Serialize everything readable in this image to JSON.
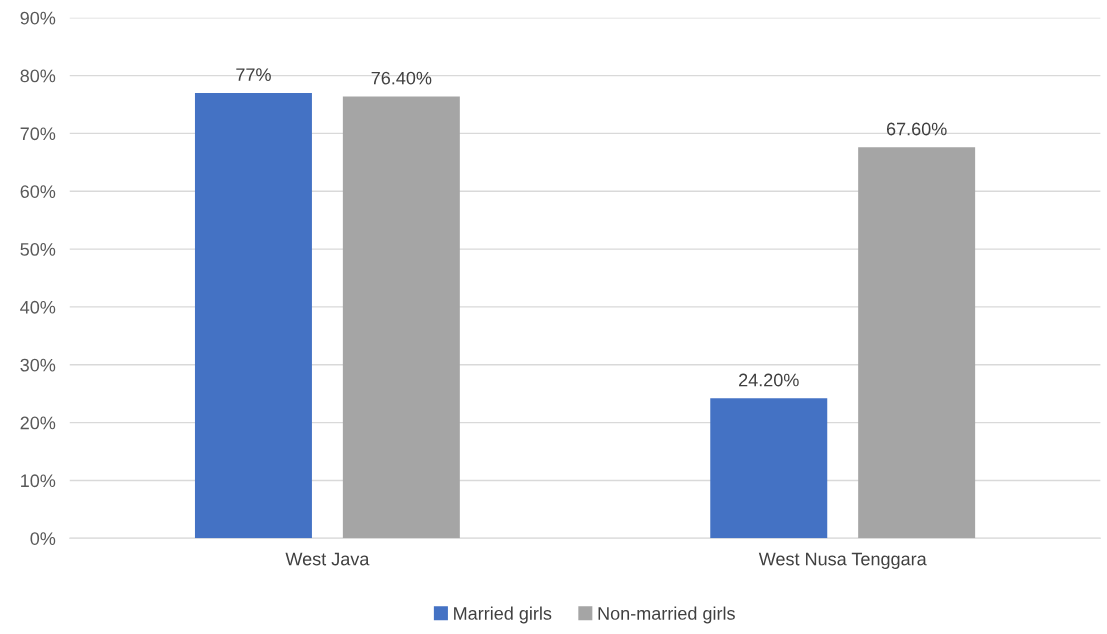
{
  "chart_data": {
    "type": "bar",
    "categories": [
      "West Java",
      "West Nusa Tenggara"
    ],
    "series": [
      {
        "name": "Married girls",
        "color": "#4472c4",
        "values": [
          77,
          24.2
        ],
        "value_labels": [
          "77%",
          "24.20%"
        ]
      },
      {
        "name": "Non-married girls",
        "color": "#a5a5a5",
        "values": [
          76.4,
          67.6
        ],
        "value_labels": [
          "76.40%",
          "67.60%"
        ]
      }
    ],
    "ylim": [
      0,
      90
    ],
    "yticks": [
      {
        "value": 0,
        "label": "0%"
      },
      {
        "value": 10,
        "label": "10%"
      },
      {
        "value": 20,
        "label": "20%"
      },
      {
        "value": 30,
        "label": "30%"
      },
      {
        "value": 40,
        "label": "40%"
      },
      {
        "value": 50,
        "label": "50%"
      },
      {
        "value": 60,
        "label": "60%"
      },
      {
        "value": 70,
        "label": "70%"
      },
      {
        "value": 80,
        "label": "80%"
      },
      {
        "value": 90,
        "label": "90%"
      }
    ],
    "grid": "y",
    "legend": "bottom"
  }
}
